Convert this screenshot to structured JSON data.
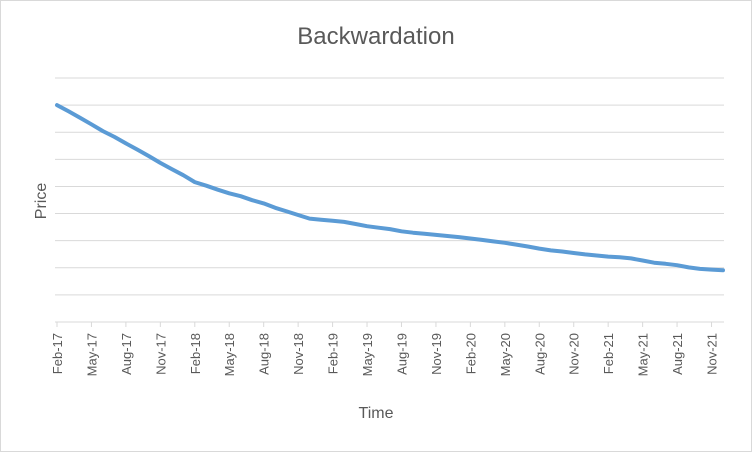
{
  "chart_data": {
    "type": "line",
    "title": "Backwardation",
    "xlabel": "Time",
    "ylabel": "Price",
    "grid": true,
    "legend": "none",
    "y_tick_labels": "none",
    "ylim": [
      0,
      6
    ],
    "line_color": "#5b9bd5",
    "x_tick_labels": [
      "Feb-17",
      "May-17",
      "Aug-17",
      "Nov-17",
      "Feb-18",
      "May-18",
      "Aug-18",
      "Nov-18",
      "Feb-19",
      "May-19",
      "Aug-19",
      "Nov-19",
      "Feb-20",
      "May-20",
      "Aug-20",
      "Nov-20",
      "Feb-21",
      "May-21",
      "Aug-21",
      "Nov-21"
    ],
    "series": [
      {
        "x": [
          "Feb-17",
          "Mar-17",
          "Apr-17",
          "May-17",
          "Jun-17",
          "Jul-17",
          "Aug-17",
          "Sep-17",
          "Oct-17",
          "Nov-17",
          "Dec-17",
          "Jan-18",
          "Feb-18",
          "Mar-18",
          "Apr-18",
          "May-18",
          "Jun-18",
          "Jul-18",
          "Aug-18",
          "Sep-18",
          "Oct-18",
          "Nov-18",
          "Dec-18",
          "Jan-19",
          "Feb-19",
          "Mar-19",
          "Apr-19",
          "May-19",
          "Jun-19",
          "Jul-19",
          "Aug-19",
          "Sep-19",
          "Oct-19",
          "Nov-19",
          "Dec-19",
          "Jan-20",
          "Feb-20",
          "Mar-20",
          "Apr-20",
          "May-20",
          "Jun-20",
          "Jul-20",
          "Aug-20",
          "Sep-20",
          "Oct-20",
          "Nov-20",
          "Dec-20",
          "Jan-21",
          "Feb-21",
          "Mar-21",
          "Apr-21",
          "May-21",
          "Jun-21",
          "Jul-21",
          "Aug-21",
          "Sep-21",
          "Oct-21",
          "Nov-21",
          "Dec-21"
        ],
        "values": [
          6.0,
          5.83,
          5.65,
          5.47,
          5.28,
          5.12,
          4.94,
          4.77,
          4.59,
          4.4,
          4.23,
          4.06,
          3.87,
          3.77,
          3.66,
          3.56,
          3.48,
          3.37,
          3.28,
          3.16,
          3.06,
          2.96,
          2.86,
          2.83,
          2.8,
          2.77,
          2.71,
          2.65,
          2.61,
          2.57,
          2.51,
          2.47,
          2.44,
          2.41,
          2.38,
          2.35,
          2.31,
          2.27,
          2.23,
          2.19,
          2.14,
          2.09,
          2.03,
          1.98,
          1.95,
          1.91,
          1.87,
          1.84,
          1.81,
          1.79,
          1.76,
          1.7,
          1.64,
          1.61,
          1.57,
          1.51,
          1.47,
          1.45,
          1.43
        ]
      }
    ]
  }
}
